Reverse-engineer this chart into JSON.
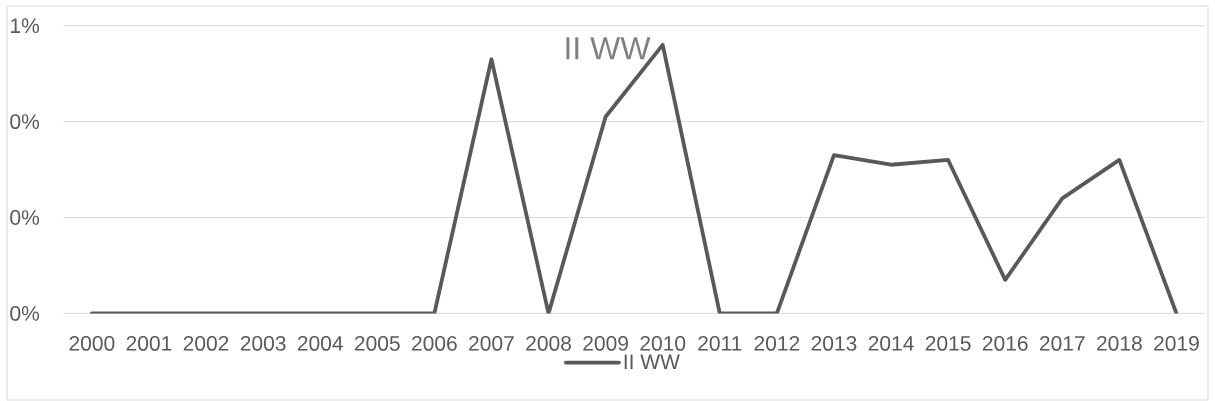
{
  "chart_data": {
    "type": "line",
    "title": "II WW",
    "categories": [
      "2000",
      "2001",
      "2002",
      "2003",
      "2004",
      "2005",
      "2006",
      "2007",
      "2008",
      "2009",
      "2010",
      "2011",
      "2012",
      "2013",
      "2014",
      "2015",
      "2016",
      "2017",
      "2018",
      "2019"
    ],
    "series": [
      {
        "name": "II WW",
        "color": "#595959",
        "values": [
          0,
          0,
          0,
          0,
          0,
          0,
          0,
          0.53,
          0,
          0.41,
          0.56,
          0,
          0,
          0.33,
          0.31,
          0.32,
          0.07,
          0.24,
          0.32,
          0
        ]
      }
    ],
    "ylim": [
      0,
      0.6
    ],
    "yticks": [
      {
        "value": 0,
        "label": "0%"
      },
      {
        "value": 0.2,
        "label": "0%"
      },
      {
        "value": 0.4,
        "label": "0%"
      },
      {
        "value": 0.6,
        "label": "1%"
      }
    ],
    "grid": "y",
    "legend": "bottom",
    "marker": "none",
    "line_style": "solid"
  }
}
